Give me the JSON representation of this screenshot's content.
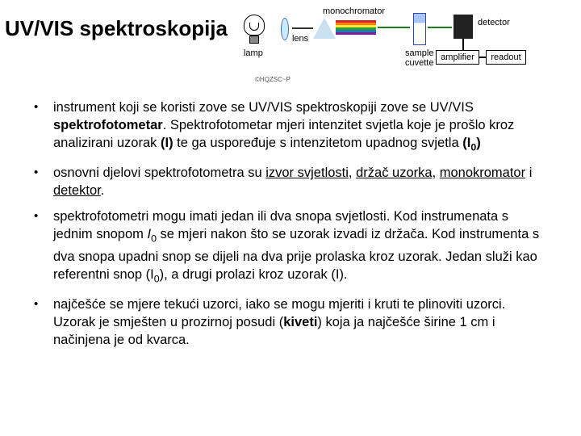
{
  "title": "UV/VIS spektroskopija",
  "attrib": "©HQZSC~P",
  "diagram": {
    "labels": {
      "lamp": "lamp",
      "lens": "lens",
      "monochromator": "monochromator",
      "sample_cuvette": "sample\ncuvette",
      "detector": "detector",
      "amplifier": "amplifier",
      "readout": "readout"
    },
    "colors": {
      "spectrum": [
        "#d62728",
        "#ff7f0e",
        "#ffeb3b",
        "#2ca02c",
        "#1f77b4",
        "#7b1fa2"
      ],
      "beam_green": "#1e7a1e",
      "lens_fill": "#cfe8ff",
      "prism_fill": "#c8e0f0",
      "cuvette_border": "#2a4aa0",
      "detector_fill": "#222222"
    }
  },
  "bullets": [
    {
      "html": "instrument koji se koristi zove se UV/VIS spektroskopiji zove se UV/VIS <b>spektrofotometar</b>. Spektrofotometar mjeri intenzitet svjetla koje je prošlo kroz analizirani uzorak <b>(I)</b> te ga uspoređuje s intenzitetom upadnog svjetla <b>(I<span class=\"sub\">0</span>)</b>"
    },
    {
      "html": "osnovni djelovi spektrofotometra su <u>izvor svjetlosti</u>, <u>držač uzorka</u>, <u>monokromator</u> i <u>detektor</u>."
    },
    {
      "html": "spektrofotometri mogu imati jedan ili dva snopa svjetlosti. Kod instrumenata s jednim snopom <i>I</i><span class=\"sub\">0</span> se mjeri nakon što se uzorak izvadi iz držača. Kod instrumenta s dva snopa upadni snop se dijeli na dva prije prolaska kroz uzorak. Jedan služi kao referentni snop (I<span class=\"sub\">0</span>), a drugi prolazi kroz uzorak (I)."
    },
    {
      "html": "najčešće se mjere tekući uzorci, iako se mogu mjeriti i kruti te plinoviti uzorci. Uzorak je smješten u prozirnoj posudi (<b>kiveti</b>) koja ja najčešće širine 1 cm i načinjena je od kvarca."
    }
  ]
}
